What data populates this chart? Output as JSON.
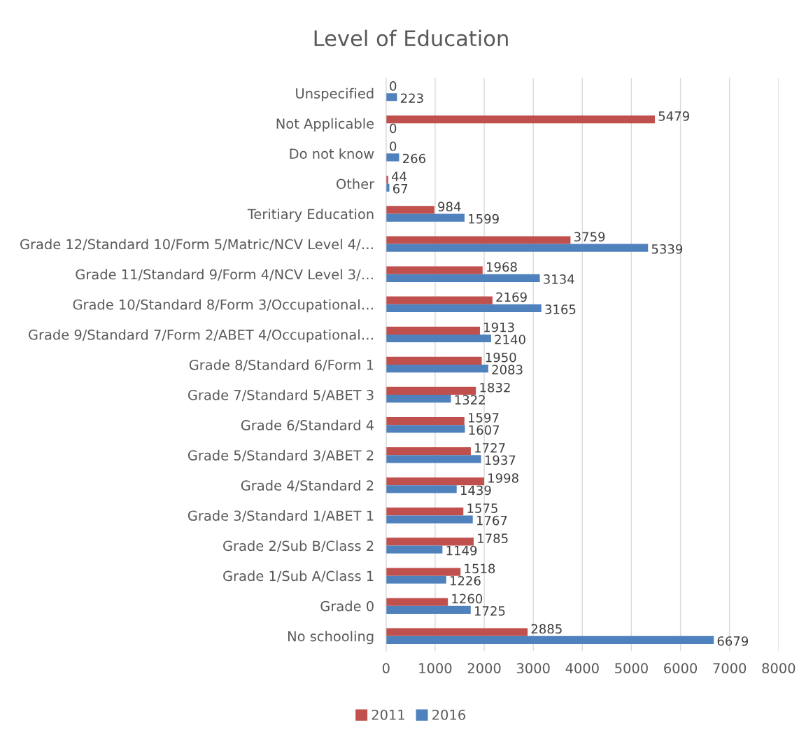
{
  "chart_data": {
    "type": "bar",
    "orientation": "horizontal",
    "title": "Level of Education",
    "categories": [
      "Unspecified",
      "Not Applicable",
      "Do not know",
      "Other",
      "Teritiary Education",
      "Grade 12/Standard 10/Form 5/Matric/NCV Level 4/…",
      "Grade 11/Standard 9/Form 4/NCV Level 3/…",
      "Grade 10/Standard 8/Form 3/Occupational…",
      "Grade 9/Standard 7/Form 2/ABET 4/Occupational…",
      "Grade 8/Standard 6/Form 1",
      "Grade 7/Standard 5/ABET 3",
      "Grade 6/Standard 4",
      "Grade 5/Standard 3/ABET 2",
      "Grade 4/Standard 2",
      "Grade 3/Standard 1/ABET 1",
      "Grade 2/Sub B/Class 2",
      "Grade 1/Sub A/Class 1",
      "Grade 0",
      "No schooling"
    ],
    "series": [
      {
        "name": "2011",
        "color": "#c0504d",
        "values": [
          0,
          5479,
          0,
          44,
          984,
          3759,
          1968,
          2169,
          1913,
          1950,
          1832,
          1597,
          1727,
          1998,
          1575,
          1785,
          1518,
          1260,
          2885
        ]
      },
      {
        "name": "2016",
        "color": "#4f81bd",
        "values": [
          223,
          0,
          266,
          67,
          1599,
          5339,
          3134,
          3165,
          2140,
          2083,
          1322,
          1607,
          1937,
          1439,
          1767,
          1149,
          1226,
          1725,
          6679
        ]
      }
    ],
    "xlim": [
      0,
      8000
    ],
    "xticks": [
      0,
      1000,
      2000,
      3000,
      4000,
      5000,
      6000,
      7000,
      8000
    ],
    "grid": "x",
    "legend": "bottom",
    "data_labels": true
  }
}
